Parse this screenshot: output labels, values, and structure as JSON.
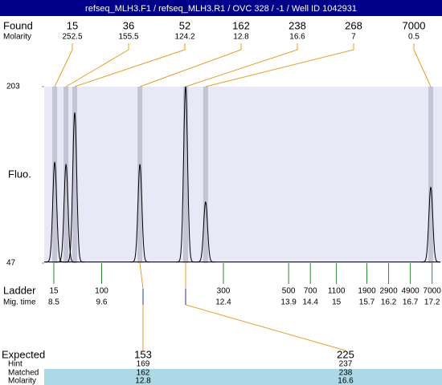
{
  "header": {
    "title": "refseq_MLH3.F1 / refseq_MLH3.R1 / OVC 328 / -1 / Well ID 1042931"
  },
  "found": {
    "label": "Found",
    "molarity_label": "Molarity",
    "peaks": [
      {
        "size": "15",
        "molarity": "252.5",
        "time": 8.52,
        "height": 136
      },
      {
        "size": "36",
        "molarity": "155.5",
        "time": 8.78,
        "height": 134
      },
      {
        "size": "52",
        "molarity": "124.2",
        "time": 8.98,
        "height": 180
      },
      {
        "size": "162",
        "molarity": "12.8",
        "time": 10.48,
        "height": 134
      },
      {
        "size": "238",
        "molarity": "16.6",
        "time": 11.53,
        "height": 203
      },
      {
        "size": "268",
        "molarity": "7",
        "time": 11.99,
        "height": 101
      },
      {
        "size": "7000",
        "molarity": "0.5",
        "time": 17.17,
        "height": 114
      }
    ]
  },
  "y_axis": {
    "label": "Fluo.",
    "ylim": [
      47,
      203
    ],
    "yticks": [
      47,
      203
    ],
    "baseline": 48
  },
  "ladder": {
    "label": "Ladder",
    "time_label": "Mig. time",
    "bands": [
      {
        "size": "15",
        "time": 8.5
      },
      {
        "size": "100",
        "time": 9.6
      },
      {
        "size": "300",
        "time": 12.4
      },
      {
        "size": "500",
        "time": 13.9
      },
      {
        "size": "700",
        "time": 14.4
      },
      {
        "size": "1100",
        "time": 15
      },
      {
        "size": "1900",
        "time": 15.7
      },
      {
        "size": "2900",
        "time": 16.2
      },
      {
        "size": "4900",
        "time": 16.7
      },
      {
        "size": "7000",
        "time": 17.2
      }
    ]
  },
  "expected": {
    "row_labels": [
      "Expected",
      "Hint",
      "Matched",
      "Molarity"
    ],
    "columns": [
      [
        "153",
        "169",
        "162",
        "12.8"
      ],
      [
        "225",
        "237",
        "238",
        "16.6"
      ]
    ]
  }
}
